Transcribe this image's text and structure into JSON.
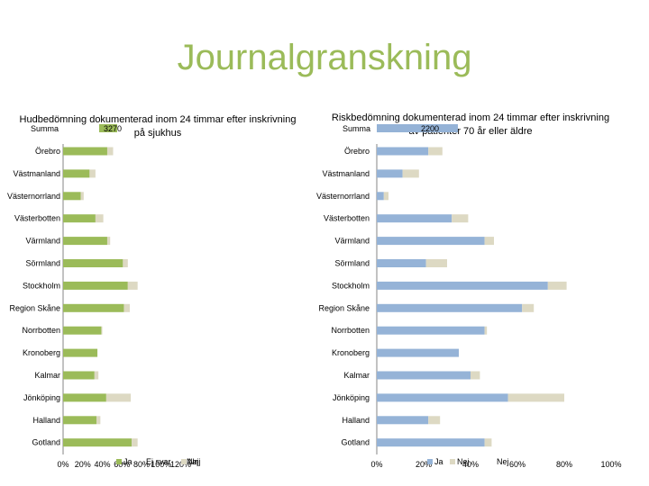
{
  "page_title": "Journalgranskning",
  "colors": {
    "title": "#9bbb59",
    "left_ja": "#9bbb59",
    "right_ja": "#95b3d7",
    "nej": "#ddd9c3",
    "axis": "#868686"
  },
  "chart_data": [
    {
      "type": "bar",
      "orientation": "horizontal",
      "stacked": true,
      "title": "Hudbedömning dokumenterad inom 24 timmar efter inskrivning på sjukhus",
      "summa_label": "Summa",
      "summa_value": "3270",
      "categories": [
        "Örebro",
        "Västmanland",
        "Västernorrland",
        "Västerbotten",
        "Värmland",
        "Sörmland",
        "Stockholm",
        "Region Skåne",
        "Norrbotten",
        "Kronoberg",
        "Kalmar",
        "Jönköping",
        "Halland",
        "Gotland"
      ],
      "series": [
        {
          "name": "Ja",
          "values": [
            45,
            27,
            18,
            33,
            45,
            61,
            66,
            62,
            39,
            35,
            32,
            44,
            34,
            70
          ]
        },
        {
          "name": "Nej",
          "values": [
            6,
            6,
            3,
            8,
            3,
            5,
            10,
            6,
            1,
            0,
            4,
            25,
            4,
            6
          ]
        }
      ],
      "legend_extra": [
        "Ej svar",
        "Nej"
      ],
      "xlim": [
        0,
        120
      ],
      "xticks": [
        "0%",
        "20%",
        "40%",
        "60%",
        "80%",
        "100%",
        "120%"
      ]
    },
    {
      "type": "bar",
      "orientation": "horizontal",
      "stacked": true,
      "title": "Riskbedömning dokumenterad inom 24 timmar efter inskrivning av patienter 70 år eller äldre",
      "summa_label": "Summa",
      "summa_value": "2200",
      "categories": [
        "Örebro",
        "Västmanland",
        "Västernorrland",
        "Västerbotten",
        "Värmland",
        "Sörmland",
        "Stockholm",
        "Region Skåne",
        "Norrbotten",
        "Kronoberg",
        "Kalmar",
        "Jönköping",
        "Halland",
        "Gotland"
      ],
      "series": [
        {
          "name": "Ja",
          "values": [
            22,
            11,
            3,
            32,
            46,
            21,
            73,
            62,
            46,
            35,
            40,
            56,
            22,
            46
          ]
        },
        {
          "name": "Nej",
          "values": [
            6,
            7,
            2,
            7,
            4,
            9,
            8,
            5,
            1,
            0,
            4,
            24,
            5,
            3
          ]
        }
      ],
      "legend_extra": [
        "Nej"
      ],
      "xlim": [
        0,
        100
      ],
      "xticks": [
        "0%",
        "20%",
        "40%",
        "60%",
        "80%",
        "100%"
      ]
    }
  ]
}
